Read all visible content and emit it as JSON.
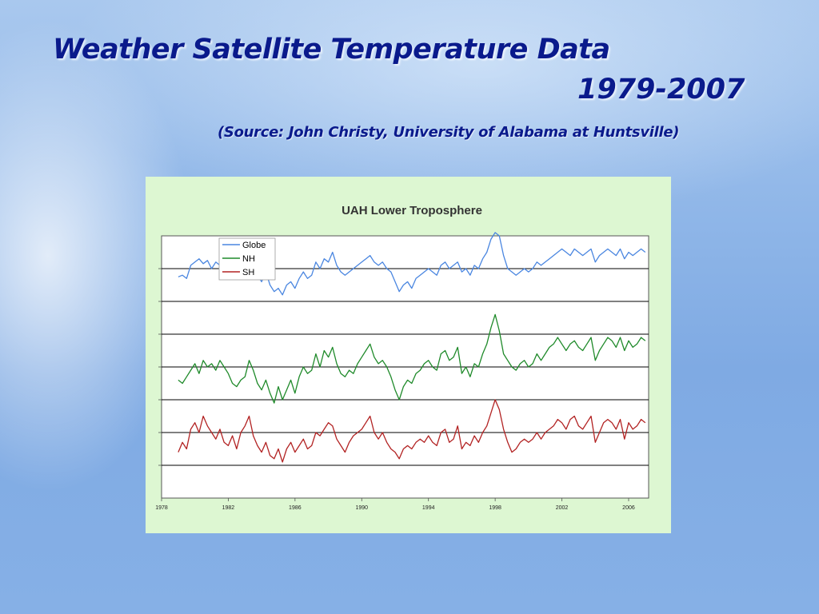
{
  "slide": {
    "title": "Weather Satellite Temperature Data",
    "years": "1979-2007",
    "source": "(Source: John Christy, University of Alabama at Huntsville)"
  },
  "colors": {
    "title_text": "#0a1a8c",
    "chart_panel": "#ddf7d2",
    "globe": "#4a86e0",
    "nh": "#1f8a2a",
    "sh": "#b22222"
  },
  "chart_data": {
    "type": "line",
    "title": "UAH Lower Troposphere",
    "xlabel": "",
    "ylabel": "",
    "xlim": [
      1978,
      2007.2
    ],
    "ylim": [
      0,
      8
    ],
    "x_ticks": [
      "1978",
      "1982",
      "1986",
      "1990",
      "1994",
      "1998",
      "2002",
      "2006"
    ],
    "x_tick_values": [
      1978,
      1982,
      1986,
      1990,
      1994,
      1998,
      2002,
      2006
    ],
    "y_tick_labels_shown": false,
    "grid": "horizontal",
    "legend": {
      "position": "top-left",
      "entries": [
        "Globe",
        "NH",
        "SH"
      ]
    },
    "series": [
      {
        "name": "Globe",
        "color": "#4a86e0",
        "x": [
          1979.0,
          1979.25,
          1979.5,
          1979.75,
          1980.0,
          1980.25,
          1980.5,
          1980.75,
          1981.0,
          1981.25,
          1981.5,
          1981.75,
          1982.0,
          1982.25,
          1982.5,
          1982.75,
          1983.0,
          1983.25,
          1983.5,
          1983.75,
          1984.0,
          1984.25,
          1984.5,
          1984.75,
          1985.0,
          1985.25,
          1985.5,
          1985.75,
          1986.0,
          1986.25,
          1986.5,
          1986.75,
          1987.0,
          1987.25,
          1987.5,
          1987.75,
          1988.0,
          1988.25,
          1988.5,
          1988.75,
          1989.0,
          1989.25,
          1989.5,
          1989.75,
          1990.0,
          1990.25,
          1990.5,
          1990.75,
          1991.0,
          1991.25,
          1991.5,
          1991.75,
          1992.0,
          1992.25,
          1992.5,
          1992.75,
          1993.0,
          1993.25,
          1993.5,
          1993.75,
          1994.0,
          1994.25,
          1994.5,
          1994.75,
          1995.0,
          1995.25,
          1995.5,
          1995.75,
          1996.0,
          1996.25,
          1996.5,
          1996.75,
          1997.0,
          1997.25,
          1997.5,
          1997.75,
          1998.0,
          1998.25,
          1998.5,
          1998.75,
          1999.0,
          1999.25,
          1999.5,
          1999.75,
          2000.0,
          2000.25,
          2000.5,
          2000.75,
          2001.0,
          2001.25,
          2001.5,
          2001.75,
          2002.0,
          2002.25,
          2002.5,
          2002.75,
          2003.0,
          2003.25,
          2003.5,
          2003.75,
          2004.0,
          2004.25,
          2004.5,
          2004.75,
          2005.0,
          2005.25,
          2005.5,
          2005.75,
          2006.0,
          2006.25,
          2006.5,
          2006.75,
          2007.0
        ],
        "y": [
          6.75,
          6.8,
          6.7,
          7.1,
          7.2,
          7.3,
          7.15,
          7.25,
          7.0,
          7.2,
          7.1,
          6.9,
          7.05,
          6.8,
          6.7,
          6.9,
          7.0,
          7.4,
          7.1,
          6.8,
          6.6,
          6.9,
          6.5,
          6.3,
          6.4,
          6.2,
          6.5,
          6.6,
          6.4,
          6.7,
          6.9,
          6.7,
          6.8,
          7.2,
          7.0,
          7.3,
          7.2,
          7.5,
          7.1,
          6.9,
          6.8,
          6.9,
          7.0,
          7.1,
          7.2,
          7.3,
          7.4,
          7.2,
          7.1,
          7.2,
          7.0,
          6.9,
          6.6,
          6.3,
          6.5,
          6.6,
          6.4,
          6.7,
          6.8,
          6.9,
          7.0,
          6.9,
          6.8,
          7.1,
          7.2,
          7.0,
          7.1,
          7.2,
          6.9,
          7.0,
          6.8,
          7.1,
          7.0,
          7.3,
          7.5,
          7.9,
          8.1,
          8.0,
          7.4,
          7.0,
          6.9,
          6.8,
          6.9,
          7.0,
          6.9,
          7.0,
          7.2,
          7.1,
          7.2,
          7.3,
          7.4,
          7.5,
          7.6,
          7.5,
          7.4,
          7.6,
          7.5,
          7.4,
          7.5,
          7.6,
          7.2,
          7.4,
          7.5,
          7.6,
          7.5,
          7.4,
          7.6,
          7.3,
          7.5,
          7.4,
          7.5,
          7.6,
          7.5
        ]
      },
      {
        "name": "NH",
        "color": "#1f8a2a",
        "x": [
          1979.0,
          1979.25,
          1979.5,
          1979.75,
          1980.0,
          1980.25,
          1980.5,
          1980.75,
          1981.0,
          1981.25,
          1981.5,
          1981.75,
          1982.0,
          1982.25,
          1982.5,
          1982.75,
          1983.0,
          1983.25,
          1983.5,
          1983.75,
          1984.0,
          1984.25,
          1984.5,
          1984.75,
          1985.0,
          1985.25,
          1985.5,
          1985.75,
          1986.0,
          1986.25,
          1986.5,
          1986.75,
          1987.0,
          1987.25,
          1987.5,
          1987.75,
          1988.0,
          1988.25,
          1988.5,
          1988.75,
          1989.0,
          1989.25,
          1989.5,
          1989.75,
          1990.0,
          1990.25,
          1990.5,
          1990.75,
          1991.0,
          1991.25,
          1991.5,
          1991.75,
          1992.0,
          1992.25,
          1992.5,
          1992.75,
          1993.0,
          1993.25,
          1993.5,
          1993.75,
          1994.0,
          1994.25,
          1994.5,
          1994.75,
          1995.0,
          1995.25,
          1995.5,
          1995.75,
          1996.0,
          1996.25,
          1996.5,
          1996.75,
          1997.0,
          1997.25,
          1997.5,
          1997.75,
          1998.0,
          1998.25,
          1998.5,
          1998.75,
          1999.0,
          1999.25,
          1999.5,
          1999.75,
          2000.0,
          2000.25,
          2000.5,
          2000.75,
          2001.0,
          2001.25,
          2001.5,
          2001.75,
          2002.0,
          2002.25,
          2002.5,
          2002.75,
          2003.0,
          2003.25,
          2003.5,
          2003.75,
          2004.0,
          2004.25,
          2004.5,
          2004.75,
          2005.0,
          2005.25,
          2005.5,
          2005.75,
          2006.0,
          2006.25,
          2006.5,
          2006.75,
          2007.0
        ],
        "y": [
          3.6,
          3.5,
          3.7,
          3.9,
          4.1,
          3.8,
          4.2,
          4.0,
          4.1,
          3.9,
          4.2,
          4.0,
          3.8,
          3.5,
          3.4,
          3.6,
          3.7,
          4.2,
          3.9,
          3.5,
          3.3,
          3.6,
          3.2,
          2.9,
          3.4,
          3.0,
          3.3,
          3.6,
          3.2,
          3.7,
          4.0,
          3.8,
          3.9,
          4.4,
          4.0,
          4.5,
          4.3,
          4.6,
          4.1,
          3.8,
          3.7,
          3.9,
          3.8,
          4.1,
          4.3,
          4.5,
          4.7,
          4.3,
          4.1,
          4.2,
          4.0,
          3.7,
          3.3,
          3.0,
          3.4,
          3.6,
          3.5,
          3.8,
          3.9,
          4.1,
          4.2,
          4.0,
          3.9,
          4.4,
          4.5,
          4.2,
          4.3,
          4.6,
          3.8,
          4.0,
          3.7,
          4.1,
          4.0,
          4.4,
          4.7,
          5.2,
          5.6,
          5.1,
          4.4,
          4.2,
          4.0,
          3.9,
          4.1,
          4.2,
          4.0,
          4.1,
          4.4,
          4.2,
          4.4,
          4.6,
          4.7,
          4.9,
          4.7,
          4.5,
          4.7,
          4.8,
          4.6,
          4.5,
          4.7,
          4.9,
          4.2,
          4.5,
          4.7,
          4.9,
          4.8,
          4.6,
          4.9,
          4.5,
          4.8,
          4.6,
          4.7,
          4.9,
          4.8
        ]
      },
      {
        "name": "SH",
        "color": "#b22222",
        "x": [
          1979.0,
          1979.25,
          1979.5,
          1979.75,
          1980.0,
          1980.25,
          1980.5,
          1980.75,
          1981.0,
          1981.25,
          1981.5,
          1981.75,
          1982.0,
          1982.25,
          1982.5,
          1982.75,
          1983.0,
          1983.25,
          1983.5,
          1983.75,
          1984.0,
          1984.25,
          1984.5,
          1984.75,
          1985.0,
          1985.25,
          1985.5,
          1985.75,
          1986.0,
          1986.25,
          1986.5,
          1986.75,
          1987.0,
          1987.25,
          1987.5,
          1987.75,
          1988.0,
          1988.25,
          1988.5,
          1988.75,
          1989.0,
          1989.25,
          1989.5,
          1989.75,
          1990.0,
          1990.25,
          1990.5,
          1990.75,
          1991.0,
          1991.25,
          1991.5,
          1991.75,
          1992.0,
          1992.25,
          1992.5,
          1992.75,
          1993.0,
          1993.25,
          1993.5,
          1993.75,
          1994.0,
          1994.25,
          1994.5,
          1994.75,
          1995.0,
          1995.25,
          1995.5,
          1995.75,
          1996.0,
          1996.25,
          1996.5,
          1996.75,
          1997.0,
          1997.25,
          1997.5,
          1997.75,
          1998.0,
          1998.25,
          1998.5,
          1998.75,
          1999.0,
          1999.25,
          1999.5,
          1999.75,
          2000.0,
          2000.25,
          2000.5,
          2000.75,
          2001.0,
          2001.25,
          2001.5,
          2001.75,
          2002.0,
          2002.25,
          2002.5,
          2002.75,
          2003.0,
          2003.25,
          2003.5,
          2003.75,
          2004.0,
          2004.25,
          2004.5,
          2004.75,
          2005.0,
          2005.25,
          2005.5,
          2005.75,
          2006.0,
          2006.25,
          2006.5,
          2006.75,
          2007.0
        ],
        "y": [
          1.4,
          1.7,
          1.5,
          2.1,
          2.3,
          2.0,
          2.5,
          2.2,
          2.0,
          1.8,
          2.1,
          1.7,
          1.6,
          1.9,
          1.5,
          2.0,
          2.2,
          2.5,
          1.9,
          1.6,
          1.4,
          1.7,
          1.3,
          1.2,
          1.5,
          1.1,
          1.5,
          1.7,
          1.4,
          1.6,
          1.8,
          1.5,
          1.6,
          2.0,
          1.9,
          2.1,
          2.3,
          2.2,
          1.8,
          1.6,
          1.4,
          1.7,
          1.9,
          2.0,
          2.1,
          2.3,
          2.5,
          2.0,
          1.8,
          2.0,
          1.7,
          1.5,
          1.4,
          1.2,
          1.5,
          1.6,
          1.5,
          1.7,
          1.8,
          1.7,
          1.9,
          1.7,
          1.6,
          2.0,
          2.1,
          1.7,
          1.8,
          2.2,
          1.5,
          1.7,
          1.6,
          1.9,
          1.7,
          2.0,
          2.2,
          2.6,
          3.0,
          2.7,
          2.1,
          1.7,
          1.4,
          1.5,
          1.7,
          1.8,
          1.7,
          1.8,
          2.0,
          1.8,
          2.0,
          2.1,
          2.2,
          2.4,
          2.3,
          2.1,
          2.4,
          2.5,
          2.2,
          2.1,
          2.3,
          2.5,
          1.7,
          2.0,
          2.3,
          2.4,
          2.3,
          2.1,
          2.4,
          1.8,
          2.3,
          2.1,
          2.2,
          2.4,
          2.3
        ]
      }
    ]
  }
}
